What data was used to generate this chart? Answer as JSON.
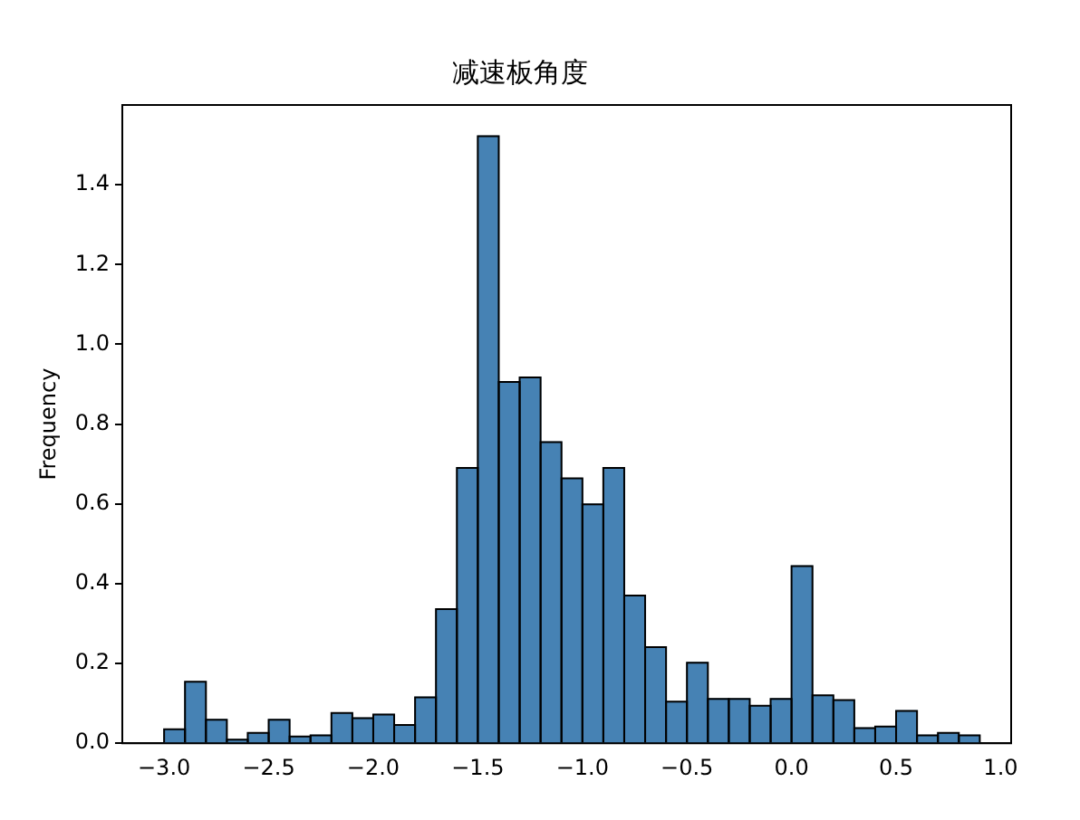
{
  "chart_data": {
    "type": "histogram",
    "title": "减速板角度",
    "ylabel": "Frequency",
    "color": "#4682b4",
    "bins": [
      -3.0,
      -2.9,
      -2.8,
      -2.7,
      -2.6,
      -2.5,
      -2.4,
      -2.3,
      -2.2,
      -2.1,
      -2.0,
      -1.9,
      -1.8,
      -1.7,
      -1.6,
      -1.5,
      -1.4,
      -1.3,
      -1.2,
      -1.1,
      -1.0,
      -0.9,
      -0.8,
      -0.7,
      -0.6,
      -0.5,
      -0.4,
      -0.3,
      -0.2,
      -0.1,
      0.0,
      0.1,
      0.2,
      0.3,
      0.4,
      0.5,
      0.6,
      0.7,
      0.8,
      0.9
    ],
    "values": [
      0.035,
      0.154,
      0.059,
      0.009,
      0.026,
      0.059,
      0.017,
      0.02,
      0.076,
      0.063,
      0.072,
      0.046,
      0.115,
      0.336,
      0.69,
      1.522,
      0.906,
      0.917,
      0.755,
      0.664,
      0.599,
      0.69,
      0.37,
      0.241,
      0.104,
      0.202,
      0.111,
      0.111,
      0.094,
      0.111,
      0.444,
      0.12,
      0.108,
      0.038,
      0.042,
      0.081,
      0.02,
      0.026,
      0.02
    ],
    "xlim": [
      -3.2,
      1.05
    ],
    "ylim": [
      0,
      1.6
    ],
    "xticks": [
      {
        "value": -3.0,
        "label": "−3.0"
      },
      {
        "value": -2.5,
        "label": "−2.5"
      },
      {
        "value": -2.0,
        "label": "−2.0"
      },
      {
        "value": -1.5,
        "label": "−1.5"
      },
      {
        "value": -1.0,
        "label": "−1.0"
      },
      {
        "value": -0.5,
        "label": "−0.5"
      },
      {
        "value": 0.0,
        "label": "0.0"
      },
      {
        "value": 0.5,
        "label": "0.5"
      },
      {
        "value": 1.0,
        "label": "1.0"
      }
    ],
    "yticks": [
      {
        "value": 0,
        "label": "0.0"
      },
      {
        "value": 0.2,
        "label": "0.2"
      },
      {
        "value": 0.4,
        "label": "0.4"
      },
      {
        "value": 0.6,
        "label": "0.6"
      },
      {
        "value": 0.8,
        "label": "0.8"
      },
      {
        "value": 1.0,
        "label": "1.0"
      },
      {
        "value": 1.2,
        "label": "1.2"
      },
      {
        "value": 1.4,
        "label": "1.4"
      }
    ],
    "grid": false,
    "legend": false
  }
}
